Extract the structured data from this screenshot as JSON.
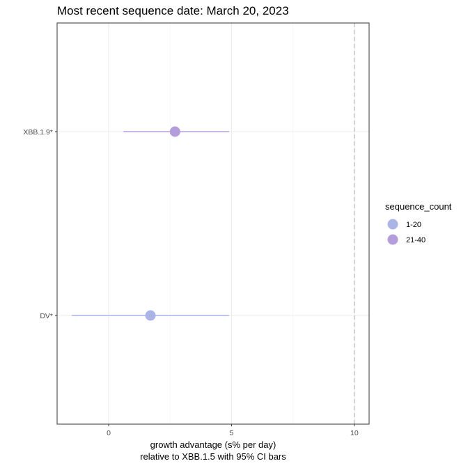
{
  "chart_data": {
    "type": "scatter",
    "subtype": "point-range",
    "title": "Most recent sequence date: March 20, 2023",
    "xlabel_line1": "growth advantage (s% per day)",
    "xlabel_line2": "relative to  XBB.1.5  with 95% CI bars",
    "ylabel": "",
    "xlim": [
      -2.1,
      10.6
    ],
    "x_ticks": [
      0,
      5,
      10
    ],
    "x_ticks_major": [
      0,
      5,
      10
    ],
    "x_ticks_minor": [
      2.5,
      7.5
    ],
    "categories": [
      "XBB.1.9*",
      "DV*"
    ],
    "points": [
      {
        "category": "XBB.1.9*",
        "value": 2.7,
        "ci_low": 0.6,
        "ci_high": 4.9,
        "sequence_count": "21-40"
      },
      {
        "category": "DV*",
        "value": 1.7,
        "ci_low": -1.5,
        "ci_high": 4.9,
        "sequence_count": "1-20"
      }
    ],
    "reference_line": {
      "x": 10,
      "style": "dashed",
      "color": "#bdbdbd"
    },
    "legend": {
      "title": "sequence_count",
      "position": "right",
      "entries": [
        {
          "label": "1-20",
          "color": "#aab4e6"
        },
        {
          "label": "21-40",
          "color": "#b39ddb"
        }
      ]
    },
    "grid": true,
    "panel_border": true
  }
}
